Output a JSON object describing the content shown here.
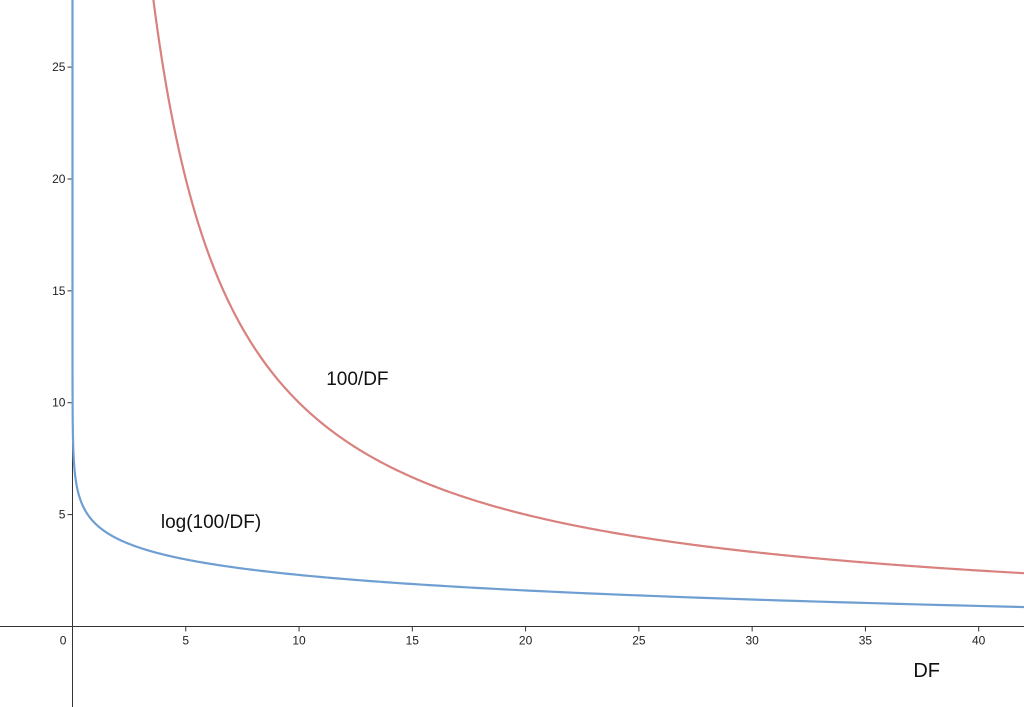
{
  "chart_data": {
    "type": "line",
    "title": "",
    "xlabel": "DF",
    "ylabel": "",
    "xlim": [
      -3.2,
      42
    ],
    "ylim": [
      -3.6,
      28
    ],
    "grid": false,
    "x_ticks": [
      0,
      5,
      10,
      15,
      20,
      25,
      30,
      35,
      40
    ],
    "y_ticks": [
      5,
      10,
      15,
      20,
      25
    ],
    "series": [
      {
        "name": "100/DF",
        "color": "#d9817e",
        "x": [
          3.6,
          4,
          5,
          6,
          8,
          10,
          12,
          15,
          20,
          25,
          30,
          35,
          40,
          42
        ],
        "y": [
          27.8,
          25,
          20,
          16.7,
          12.5,
          10,
          8.3,
          6.7,
          5,
          4,
          3.3,
          2.9,
          2.5,
          2.4
        ]
      },
      {
        "name": "log(100/DF)",
        "color": "#6f9fd2",
        "x": [
          0.01,
          0.02,
          0.05,
          0.1,
          0.2,
          0.5,
          1,
          2,
          5,
          10,
          15,
          20,
          25,
          30,
          35,
          40,
          42
        ],
        "y": [
          9.2,
          8.5,
          7.6,
          6.9,
          6.2,
          5.3,
          4.6,
          3.9,
          3.0,
          2.3,
          1.9,
          1.6,
          1.4,
          1.2,
          1.05,
          0.92,
          0.87
        ]
      }
    ],
    "annotations": [
      {
        "text": "100/DF",
        "x": 11.2,
        "y": 10.8
      },
      {
        "text": "log(100/DF)",
        "x": 3.9,
        "y": 4.4
      }
    ]
  }
}
